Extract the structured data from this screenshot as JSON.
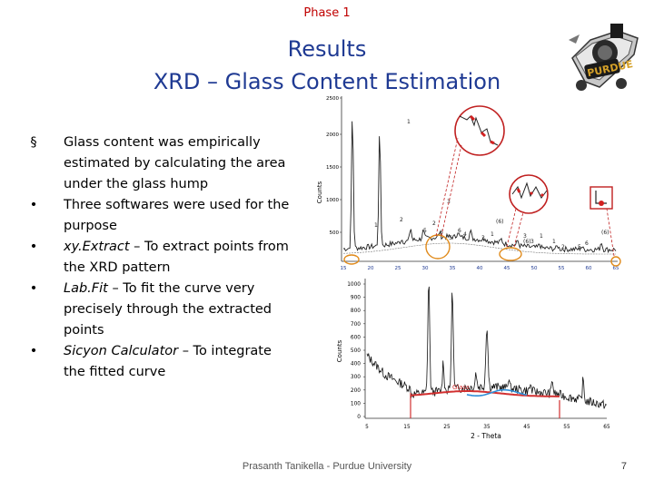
{
  "header": {
    "phase": "Phase 1",
    "title_line1": "Results",
    "title_line2": "XRD – Glass Content Estimation"
  },
  "bullets": [
    {
      "marker": "§",
      "prefix": "",
      "text": "Glass content was empirically estimated by calculating the area under the glass hump"
    },
    {
      "marker": "•",
      "prefix": "",
      "text": "Three softwares were used for the purpose"
    },
    {
      "marker": "•",
      "prefix": "xy.Extract",
      "text": " – To extract points from the XRD pattern"
    },
    {
      "marker": "•",
      "prefix": "Lab.Fit",
      "text": " – To fit the curve very precisely through the extracted points"
    },
    {
      "marker": "•",
      "prefix": "Sicyon Calculator",
      "text": " – To integrate the fitted curve"
    }
  ],
  "chart_data": [
    {
      "type": "line",
      "ylabel": "Counts",
      "y_ticks": [
        "2500",
        "2000",
        "1500",
        "1000",
        "500"
      ],
      "x_ticks": [
        "15",
        "20",
        "25",
        "30",
        "35",
        "40",
        "45",
        "50",
        "55",
        "60",
        "65"
      ],
      "peak_labels": [
        "1",
        "1",
        "2",
        "3",
        "2",
        "6",
        "5",
        "6",
        "(6)",
        "5",
        "4",
        "3",
        "1",
        "3",
        "1",
        "(6)",
        "(6)",
        "5",
        "6",
        "1",
        "3",
        "2"
      ],
      "colors": {
        "pattern": "#222222",
        "marker": "#d22020",
        "hump": "#e08a1a",
        "callout": "#c02020"
      }
    },
    {
      "type": "line",
      "xlabel": "2 - Theta",
      "ylabel": "Counts",
      "y_ticks": [
        "1000",
        "900",
        "800",
        "700",
        "600",
        "500",
        "400",
        "300",
        "200",
        "100",
        "0"
      ],
      "x_ticks": [
        "5",
        "15",
        "25",
        "35",
        "45",
        "55",
        "65"
      ],
      "annotation": "Glass",
      "colors": {
        "pattern": "#111111",
        "fit": "#d23030",
        "glass_fit": "#2f8fd8"
      }
    }
  ],
  "footer": {
    "author": "Prasanth Tanikella - Purdue University",
    "page": "7"
  }
}
